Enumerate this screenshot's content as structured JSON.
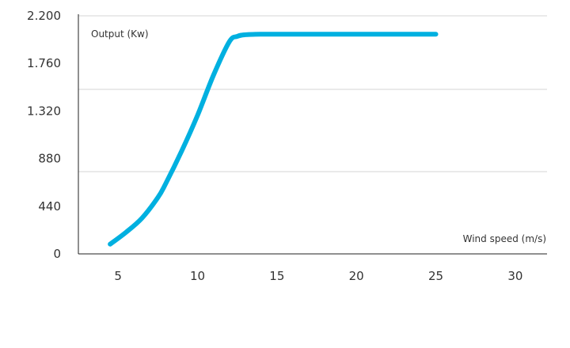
{
  "chart_data": {
    "type": "line",
    "title": "",
    "xlabel": "Wind speed (m/s)",
    "ylabel": "Output (Kw)",
    "xlim": [
      2.5,
      32
    ],
    "ylim": [
      0,
      2200
    ],
    "x_ticks": [
      5,
      10,
      15,
      20,
      25,
      30
    ],
    "x_tick_labels": [
      "5",
      "10",
      "15",
      "20",
      "25",
      "30"
    ],
    "y_ticks": [
      0,
      440,
      880,
      1320,
      1760,
      2200
    ],
    "y_tick_labels": [
      "0",
      "440",
      "880",
      "1.320",
      "1.760",
      "2.200"
    ],
    "gridlines_y": [
      760,
      1520,
      2200
    ],
    "grid": true,
    "legend": "none",
    "series": [
      {
        "color": "#00b0e0",
        "x": [
          4.5,
          5.5,
          6.5,
          7.5,
          8.0,
          9.0,
          10.0,
          11.0,
          12.0,
          12.5,
          13.0,
          14.0,
          15.0,
          17.5,
          20.0,
          22.5,
          25.0
        ],
        "y": [
          90,
          200,
          330,
          520,
          650,
          950,
          1280,
          1650,
          1960,
          2010,
          2025,
          2030,
          2030,
          2030,
          2030,
          2030,
          2030
        ]
      }
    ]
  }
}
